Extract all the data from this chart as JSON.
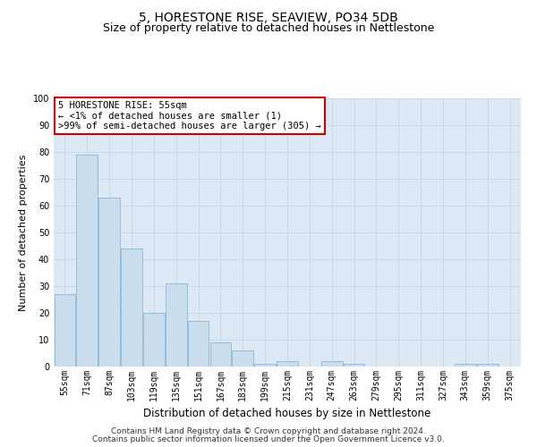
{
  "title": "5, HORESTONE RISE, SEAVIEW, PO34 5DB",
  "subtitle": "Size of property relative to detached houses in Nettlestone",
  "xlabel": "Distribution of detached houses by size in Nettlestone",
  "ylabel": "Number of detached properties",
  "categories": [
    "55sqm",
    "71sqm",
    "87sqm",
    "103sqm",
    "119sqm",
    "135sqm",
    "151sqm",
    "167sqm",
    "183sqm",
    "199sqm",
    "215sqm",
    "231sqm",
    "247sqm",
    "263sqm",
    "279sqm",
    "295sqm",
    "311sqm",
    "327sqm",
    "343sqm",
    "359sqm",
    "375sqm"
  ],
  "values": [
    27,
    79,
    63,
    44,
    20,
    31,
    17,
    9,
    6,
    1,
    2,
    0,
    2,
    1,
    0,
    0,
    0,
    0,
    1,
    1,
    0
  ],
  "bar_color": "#c9dded",
  "bar_edge_color": "#7aafd4",
  "annotation_box_text": "5 HORESTONE RISE: 55sqm\n← <1% of detached houses are smaller (1)\n>99% of semi-detached houses are larger (305) →",
  "annotation_box_facecolor": "#ffffff",
  "annotation_box_edgecolor": "#cc0000",
  "ylim": [
    0,
    100
  ],
  "yticks": [
    0,
    10,
    20,
    30,
    40,
    50,
    60,
    70,
    80,
    90,
    100
  ],
  "grid_color": "#c8d8e8",
  "background_color": "#dce9f5",
  "footer_line1": "Contains HM Land Registry data © Crown copyright and database right 2024.",
  "footer_line2": "Contains public sector information licensed under the Open Government Licence v3.0.",
  "title_fontsize": 10,
  "subtitle_fontsize": 9,
  "xlabel_fontsize": 8.5,
  "ylabel_fontsize": 8,
  "tick_fontsize": 7,
  "annotation_fontsize": 7.5,
  "footer_fontsize": 6.5
}
